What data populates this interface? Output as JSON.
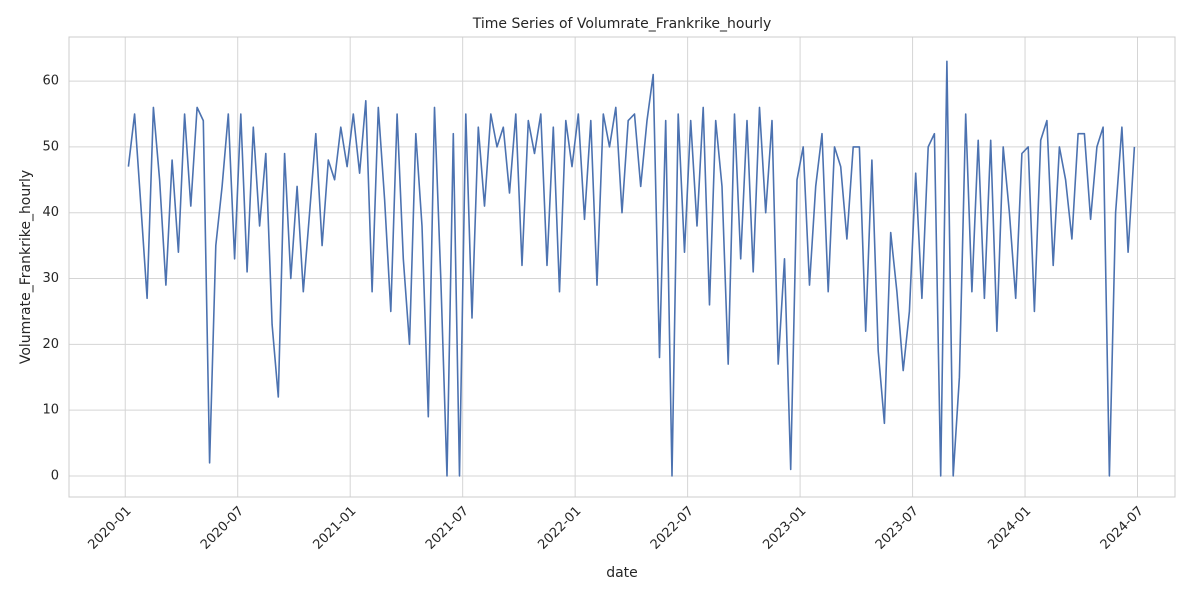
{
  "chart_data": {
    "type": "line",
    "title": "Time Series of Volumrate_Frankrike_hourly",
    "x_label": "date",
    "y_label": "Volumrate_Frankrike_hourly",
    "x": [
      "2020-01",
      "2020-01",
      "2020-01",
      "2020-02",
      "2020-02",
      "2020-02",
      "2020-03",
      "2020-03",
      "2020-03",
      "2020-04",
      "2020-04",
      "2020-04",
      "2020-05",
      "2020-05",
      "2020-05",
      "2020-06",
      "2020-06",
      "2020-06",
      "2020-07",
      "2020-07",
      "2020-07",
      "2020-08",
      "2020-08",
      "2020-08",
      "2020-09",
      "2020-09",
      "2020-09",
      "2020-10",
      "2020-10",
      "2020-10",
      "2020-11",
      "2020-11",
      "2020-11",
      "2020-12",
      "2020-12",
      "2020-12",
      "2021-01",
      "2021-01",
      "2021-01",
      "2021-02",
      "2021-02",
      "2021-02",
      "2021-03",
      "2021-03",
      "2021-03",
      "2021-04",
      "2021-04",
      "2021-04",
      "2021-05",
      "2021-05",
      "2021-05",
      "2021-06",
      "2021-06",
      "2021-06",
      "2021-07",
      "2021-07",
      "2021-07",
      "2021-08",
      "2021-08",
      "2021-08",
      "2021-09",
      "2021-09",
      "2021-09",
      "2021-10",
      "2021-10",
      "2021-10",
      "2021-11",
      "2021-11",
      "2021-11",
      "2021-12",
      "2021-12",
      "2021-12",
      "2022-01",
      "2022-01",
      "2022-01",
      "2022-02",
      "2022-02",
      "2022-02",
      "2022-03",
      "2022-03",
      "2022-03",
      "2022-04",
      "2022-04",
      "2022-04",
      "2022-05",
      "2022-05",
      "2022-05",
      "2022-06",
      "2022-06",
      "2022-06",
      "2022-07",
      "2022-07",
      "2022-07",
      "2022-08",
      "2022-08",
      "2022-08",
      "2022-09",
      "2022-09",
      "2022-09",
      "2022-10",
      "2022-10",
      "2022-10",
      "2022-11",
      "2022-11",
      "2022-11",
      "2022-12",
      "2022-12",
      "2022-12",
      "2023-01",
      "2023-01",
      "2023-01",
      "2023-02",
      "2023-02",
      "2023-02",
      "2023-03",
      "2023-03",
      "2023-03",
      "2023-04",
      "2023-04",
      "2023-04",
      "2023-05",
      "2023-05",
      "2023-05",
      "2023-06",
      "2023-06",
      "2023-06",
      "2023-07",
      "2023-07",
      "2023-07",
      "2023-08",
      "2023-08",
      "2023-08",
      "2023-09",
      "2023-09",
      "2023-09",
      "2023-10",
      "2023-10",
      "2023-10",
      "2023-11",
      "2023-11",
      "2023-11",
      "2023-12",
      "2023-12",
      "2023-12",
      "2024-01",
      "2024-01",
      "2024-01",
      "2024-02",
      "2024-02",
      "2024-02",
      "2024-03",
      "2024-03",
      "2024-03",
      "2024-04",
      "2024-04",
      "2024-04",
      "2024-05",
      "2024-05",
      "2024-05",
      "2024-06",
      "2024-06",
      "2024-06"
    ],
    "series": [
      {
        "color": "#4c72b0",
        "values": [
          47,
          55,
          41,
          27,
          56,
          45,
          29,
          48,
          34,
          55,
          41,
          56,
          54,
          2,
          35,
          44,
          55,
          33,
          55,
          31,
          53,
          38,
          49,
          23,
          12,
          49,
          30,
          44,
          28,
          40,
          52,
          35,
          48,
          45,
          53,
          47,
          55,
          46,
          57,
          28,
          56,
          42,
          25,
          55,
          33,
          20,
          52,
          38,
          9,
          56,
          30,
          0,
          52,
          0,
          55,
          24,
          53,
          41,
          55,
          50,
          53,
          43,
          55,
          32,
          54,
          49,
          55,
          32,
          53,
          28,
          54,
          47,
          55,
          39,
          54,
          29,
          55,
          50,
          56,
          40,
          54,
          55,
          44,
          54,
          61,
          18,
          54,
          0,
          55,
          34,
          54,
          38,
          56,
          26,
          54,
          44,
          17,
          55,
          33,
          54,
          31,
          56,
          40,
          54,
          17,
          33,
          1,
          45,
          50,
          29,
          44,
          52,
          28,
          50,
          47,
          36,
          50,
          50,
          22,
          48,
          19,
          8,
          37,
          28,
          16,
          25,
          46,
          27,
          50,
          52,
          0,
          63,
          0,
          15,
          55,
          28,
          51,
          27,
          51,
          22,
          50,
          40,
          27,
          49,
          50,
          25,
          51,
          54,
          32,
          50,
          45,
          36,
          52,
          52,
          39,
          50,
          53,
          0,
          40,
          53,
          34,
          50
        ]
      }
    ],
    "xlim": [
      "2019-10",
      "2024-09"
    ],
    "xticks": [
      "2020-01",
      "2020-07",
      "2021-01",
      "2021-07",
      "2022-01",
      "2022-07",
      "2023-01",
      "2023-07",
      "2024-01",
      "2024-07"
    ],
    "ylim": [
      -3.2,
      66.7
    ],
    "yticks": [
      0,
      10,
      20,
      30,
      40,
      50,
      60
    ],
    "grid": true
  }
}
